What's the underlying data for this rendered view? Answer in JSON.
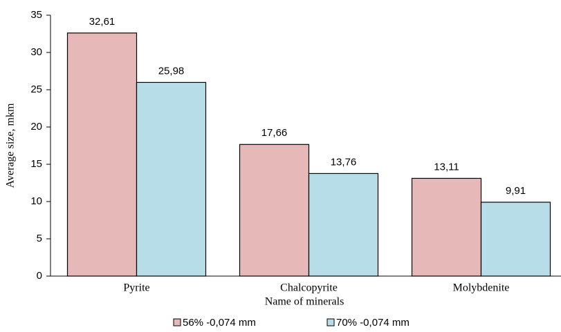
{
  "chart_data": {
    "type": "bar",
    "categories": [
      "Pyrite",
      "Chalcopyrite",
      "Molybdenite"
    ],
    "series": [
      {
        "name": "56% -0,074  mm",
        "color": "#e6b8b8",
        "values": [
          32.61,
          17.66,
          13.11
        ],
        "value_labels": [
          "32,61",
          "17,66",
          "13,11"
        ]
      },
      {
        "name": "70% -0,074  mm",
        "color": "#b7dde8",
        "values": [
          25.98,
          13.76,
          9.91
        ],
        "value_labels": [
          "25,98",
          "13,76",
          "9,91"
        ]
      }
    ],
    "xlabel": "Name of minerals",
    "ylabel": "Average size, mkm",
    "ylim": [
      0,
      35
    ],
    "yticks": [
      0,
      5,
      10,
      15,
      20,
      25,
      30,
      35
    ],
    "grid": false,
    "legend": "bottom"
  }
}
